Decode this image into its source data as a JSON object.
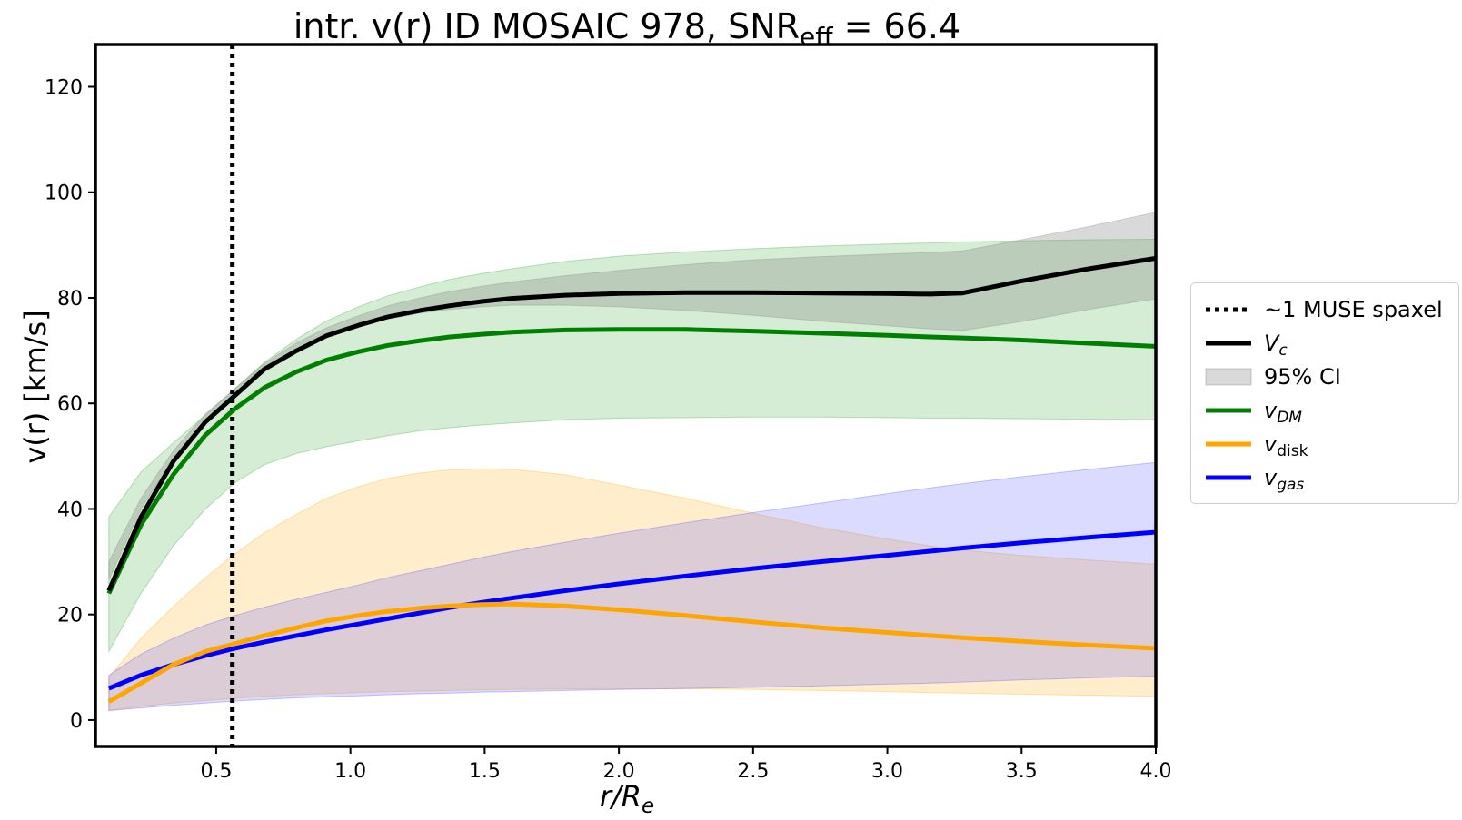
{
  "chart_data": {
    "type": "line",
    "title": "intr. v(r) ID MOSAIC 978, SNR",
    "title_sub": "eff",
    "title_tail": " = 66.4",
    "xlabel": "r/R",
    "xlabel_sub": "e",
    "ylabel": "v(r) [km/s]",
    "xlim": [
      0.05,
      4.0
    ],
    "ylim": [
      -5,
      128
    ],
    "xticks": [
      0.5,
      1.0,
      1.5,
      2.0,
      2.5,
      3.0,
      3.5,
      4.0
    ],
    "xtick_labels": [
      "0.5",
      "1.0",
      "1.5",
      "2.0",
      "2.5",
      "3.0",
      "3.5",
      "4.0"
    ],
    "yticks": [
      0,
      20,
      40,
      60,
      80,
      100,
      120
    ],
    "ytick_labels": [
      "0",
      "20",
      "40",
      "60",
      "80",
      "100",
      "120"
    ],
    "grid": false,
    "legend_position": "center-right outside",
    "vline": {
      "x": 0.56,
      "label": "~1 MUSE spaxel",
      "style": "dotted",
      "color": "#000000"
    },
    "x": [
      0.1,
      0.22,
      0.34,
      0.46,
      0.57,
      0.68,
      0.8,
      0.91,
      1.03,
      1.14,
      1.26,
      1.37,
      1.49,
      1.6,
      1.8,
      2.0,
      2.25,
      2.5,
      2.75,
      3.0,
      3.16,
      3.28,
      3.5,
      3.75,
      4.0
    ],
    "series": [
      {
        "name": "V",
        "name_sub": "c",
        "color": "#000000",
        "band_color": "#808080",
        "values": [
          24.5,
          38.5,
          49,
          56.5,
          61.5,
          66.5,
          70,
          72.8,
          74.8,
          76.4,
          77.6,
          78.5,
          79.3,
          79.9,
          80.5,
          80.8,
          81,
          81,
          80.9,
          80.8,
          80.7,
          80.9,
          83.2,
          85.5,
          87.5
        ],
        "lower": [
          26.5,
          40,
          49.5,
          57,
          61.5,
          66,
          70,
          72.5,
          74.5,
          76,
          77.1,
          77.8,
          78.3,
          78.6,
          78.6,
          78.3,
          77.6,
          76.7,
          75.6,
          74.7,
          74.1,
          73.8,
          75.5,
          77.8,
          79.8
        ],
        "upper": [
          30,
          42,
          51,
          58,
          62.8,
          67.6,
          71.5,
          74.3,
          76.6,
          78.5,
          80,
          81.2,
          82.2,
          83,
          84.2,
          85.2,
          86.3,
          87.2,
          87.8,
          88.3,
          88.6,
          88.9,
          91,
          93.5,
          96.2
        ]
      },
      {
        "name": "v",
        "name_sub": "DM",
        "color": "#008000",
        "band_color": "#2ca02c",
        "values": [
          24,
          37,
          46.5,
          54,
          59,
          63,
          66,
          68.2,
          69.8,
          71,
          71.9,
          72.6,
          73.1,
          73.5,
          73.9,
          74,
          74,
          73.7,
          73.3,
          72.9,
          72.6,
          72.4,
          72,
          71.4,
          70.8
        ],
        "lower": [
          13,
          24,
          33,
          40,
          45,
          48.4,
          50.5,
          51.8,
          52.9,
          53.9,
          54.8,
          55.4,
          55.9,
          56.3,
          56.9,
          57.2,
          57.3,
          57.4,
          57.4,
          57.3,
          57.2,
          57.2,
          57.1,
          57,
          56.9
        ],
        "upper": [
          38.5,
          47,
          52.5,
          57.8,
          62.8,
          67.8,
          72.2,
          75.6,
          78.3,
          80.4,
          82.1,
          83.5,
          84.6,
          85.5,
          86.9,
          87.9,
          88.7,
          89.3,
          89.8,
          90.2,
          90.4,
          90.6,
          90.8,
          91,
          91.1
        ]
      },
      {
        "name": "v",
        "name_sub": "disk",
        "color": "#ffa500",
        "band_color": "#ffa500",
        "values": [
          3.5,
          7,
          10.5,
          13,
          14.5,
          16,
          17.5,
          18.8,
          19.8,
          20.6,
          21.2,
          21.6,
          21.9,
          22,
          21.6,
          20.9,
          19.8,
          18.6,
          17.5,
          16.6,
          16,
          15.6,
          14.9,
          14.2,
          13.6
        ],
        "lower": [
          1.8,
          2.6,
          3.2,
          3.7,
          4.1,
          4.5,
          4.8,
          5,
          5.2,
          5.4,
          5.5,
          5.6,
          5.7,
          5.8,
          5.9,
          5.9,
          5.9,
          5.8,
          5.6,
          5.4,
          5.2,
          5.1,
          4.9,
          4.7,
          4.5
        ],
        "upper": [
          8,
          15.5,
          21.5,
          27,
          31.5,
          35.5,
          39,
          42,
          44.2,
          45.8,
          46.8,
          47.4,
          47.6,
          47.5,
          46.5,
          44.5,
          42,
          39.2,
          36.5,
          34.3,
          33,
          32.2,
          31.2,
          30.3,
          29.5
        ]
      },
      {
        "name": "v",
        "name_sub": "gas",
        "color": "#0000ff",
        "band_color": "#4a4aff",
        "values": [
          6,
          8.5,
          10.5,
          12.2,
          13.6,
          14.8,
          16,
          17.1,
          18.2,
          19.2,
          20.3,
          21.3,
          22.3,
          23.1,
          24.5,
          25.8,
          27.3,
          28.7,
          30,
          31.2,
          32,
          32.6,
          33.6,
          34.6,
          35.6
        ],
        "lower": [
          1.8,
          2.3,
          2.8,
          3.2,
          3.6,
          3.9,
          4.2,
          4.4,
          4.6,
          4.8,
          5,
          5.1,
          5.3,
          5.4,
          5.6,
          5.8,
          6,
          6.2,
          6.5,
          6.8,
          7,
          7.2,
          7.6,
          8,
          8.3
        ],
        "upper": [
          8.5,
          12.5,
          15.5,
          18,
          19.8,
          21.4,
          22.9,
          24.2,
          25.6,
          27,
          28.3,
          29.5,
          30.8,
          31.9,
          33.7,
          35.4,
          37.4,
          39.3,
          41.1,
          42.9,
          44,
          44.8,
          46.1,
          47.5,
          48.8
        ]
      }
    ],
    "ci_label": "95% CI"
  }
}
